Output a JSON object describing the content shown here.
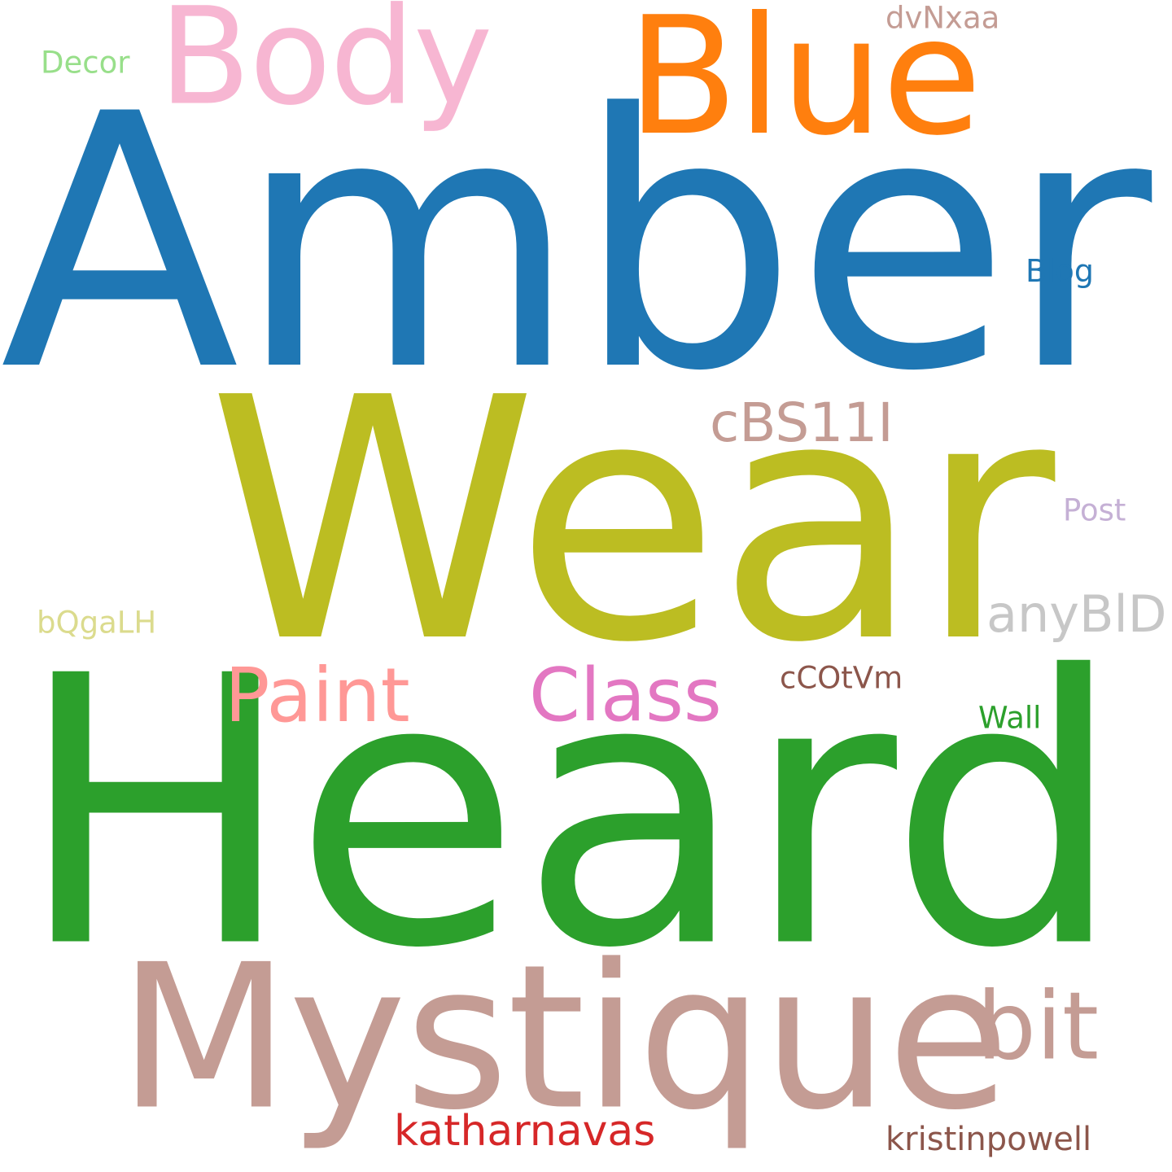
{
  "word_cloud": {
    "background": "#ffffff",
    "words": {
      "heard": {
        "text": "Heard",
        "color": "#2ca02c"
      },
      "amber": {
        "text": "Amber",
        "color": "#1f77b4"
      },
      "wear": {
        "text": "Wear",
        "color": "#bcbd22"
      },
      "mystique": {
        "text": "Mystique",
        "color": "#c49c94"
      },
      "blue": {
        "text": "Blue",
        "color": "#ff7f0e"
      },
      "body": {
        "text": "Body",
        "color": "#f7b6d2"
      },
      "bit": {
        "text": "bit",
        "color": "#c49c94"
      },
      "paint": {
        "text": "Paint",
        "color": "#ff9896"
      },
      "class": {
        "text": "Class",
        "color": "#e377c2"
      },
      "cbs11i": {
        "text": "cBS11I",
        "color": "#c49c94"
      },
      "anybld": {
        "text": "anyBlD",
        "color": "#c7c7c7"
      },
      "katharnavas": {
        "text": "katharnavas",
        "color": "#d62728"
      },
      "kristinpowell": {
        "text": "kristinpowell",
        "color": "#8c564b"
      },
      "blog": {
        "text": "Blog",
        "color": "#1f77b4"
      },
      "post": {
        "text": "Post",
        "color": "#c5b0d5"
      },
      "decor": {
        "text": "Decor",
        "color": "#98df8a"
      },
      "dvnxaa": {
        "text": "dvNxaa",
        "color": "#c49c94"
      },
      "bqgalh": {
        "text": "bQgaLH",
        "color": "#dbdb8d"
      },
      "ccotvm": {
        "text": "cCOtVm",
        "color": "#8c564b"
      },
      "wall": {
        "text": "Wall",
        "color": "#2ca02c"
      }
    }
  }
}
